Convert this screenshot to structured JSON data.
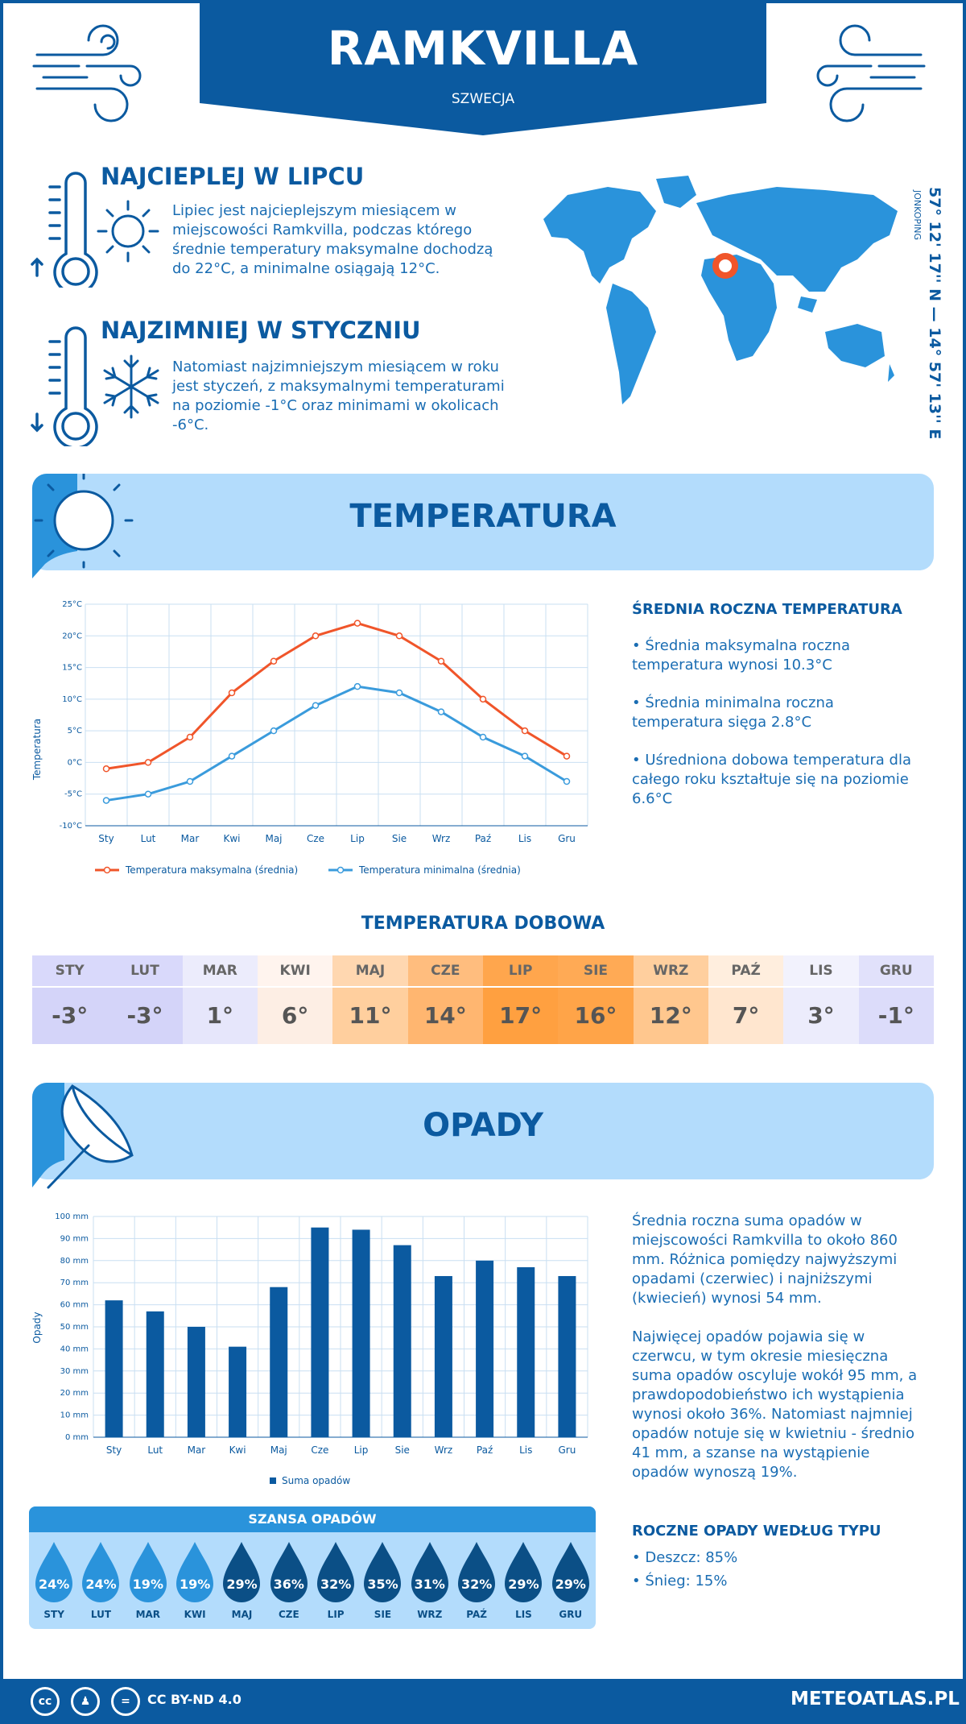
{
  "header": {
    "title": "RAMKVILLA",
    "subtitle": "SZWECJA"
  },
  "facts": {
    "warmest": {
      "title": "NAJCIEPLEJ W LIPCU",
      "text": "Lipiec jest najcieplejszym miesiącem w miejscowości Ramkvilla, podczas którego średnie temperatury maksymalne dochodzą do 22°C, a minimalne osiągają 12°C."
    },
    "coldest": {
      "title": "NAJZIMNIEJ W STYCZNIU",
      "text": "Natomiast najzimniejszym miesiącem w roku jest styczeń, z maksymalnymi temperaturami na poziomie -1°C oraz minimami w okolicach -6°C."
    }
  },
  "location": {
    "coords": "57° 12' 17'' N — 14° 57' 13'' E",
    "region": "JONKOPING"
  },
  "temperature": {
    "section_title": "TEMPERATURA",
    "side_title": "ŚREDNIA ROCZNA TEMPERATURA",
    "bullets": [
      "• Średnia maksymalna roczna temperatura wynosi 10.3°C",
      "• Średnia minimalna roczna temperatura sięga 2.8°C",
      "• Uśredniona dobowa temperatura dla całego roku kształtuje się na poziomie 6.6°C"
    ],
    "daily_title": "TEMPERATURA DOBOWA",
    "daily": [
      {
        "m": "STY",
        "v": "-3°",
        "bg": "#d9d9fb",
        "bg2": "#d4d4f9"
      },
      {
        "m": "LUT",
        "v": "-3°",
        "bg": "#d9d9fb",
        "bg2": "#d4d4f9"
      },
      {
        "m": "MAR",
        "v": "1°",
        "bg": "#ececfc",
        "bg2": "#e6e6fb"
      },
      {
        "m": "KWI",
        "v": "6°",
        "bg": "#fff4ee",
        "bg2": "#fdeee4"
      },
      {
        "m": "MAJ",
        "v": "11°",
        "bg": "#ffd7b0",
        "bg2": "#ffcf9e"
      },
      {
        "m": "CZE",
        "v": "14°",
        "bg": "#ffbd7e",
        "bg2": "#ffb670"
      },
      {
        "m": "LIP",
        "v": "17°",
        "bg": "#ffa64d",
        "bg2": "#ffa040"
      },
      {
        "m": "SIE",
        "v": "16°",
        "bg": "#ffaa55",
        "bg2": "#ffa448"
      },
      {
        "m": "WRZ",
        "v": "12°",
        "bg": "#ffcf9e",
        "bg2": "#ffc78e"
      },
      {
        "m": "PAŹ",
        "v": "7°",
        "bg": "#ffeede",
        "bg2": "#ffe6cf"
      },
      {
        "m": "LIS",
        "v": "3°",
        "bg": "#f2f2fd",
        "bg2": "#ececfc"
      },
      {
        "m": "GRU",
        "v": "-1°",
        "bg": "#e1e1fb",
        "bg2": "#dcdcfa"
      }
    ]
  },
  "precip": {
    "section_title": "OPADY",
    "text1": "Średnia roczna suma opadów w miejscowości Ramkvilla to około 860 mm. Różnica pomiędzy najwyższymi opadami (czerwiec) i najniższymi (kwiecień) wynosi 54 mm.",
    "text2": "Najwięcej opadów pojawia się w czerwcu, w tym okresie miesięczna suma opadów oscyluje wokół 95 mm, a prawdopodobieństwo ich wystąpienia wynosi około 36%. Natomiast najmniej opadów notuje się w kwietniu - średnio 41 mm, a szanse na wystąpienie opadów wynoszą 19%.",
    "types_title": "ROCZNE OPADY WEDŁUG TYPU",
    "types": [
      "• Deszcz: 85%",
      "• Śnieg: 15%"
    ],
    "chance_title": "SZANSA OPADÓW",
    "chance": [
      {
        "m": "STY",
        "p": "24%"
      },
      {
        "m": "LUT",
        "p": "24%"
      },
      {
        "m": "MAR",
        "p": "19%"
      },
      {
        "m": "KWI",
        "p": "19%"
      },
      {
        "m": "MAJ",
        "p": "29%"
      },
      {
        "m": "CZE",
        "p": "36%"
      },
      {
        "m": "LIP",
        "p": "32%"
      },
      {
        "m": "SIE",
        "p": "35%"
      },
      {
        "m": "WRZ",
        "p": "31%"
      },
      {
        "m": "PAŹ",
        "p": "32%"
      },
      {
        "m": "LIS",
        "p": "29%"
      },
      {
        "m": "GRU",
        "p": "29%"
      }
    ]
  },
  "footer": {
    "license": "CC BY-ND 4.0",
    "site": "METEOATLAS.PL"
  },
  "colors": {
    "brand": "#0b5aa0",
    "accent": "#2a93db",
    "max": "#f0552a",
    "min": "#3a9bdc"
  },
  "chart_data": [
    {
      "type": "line",
      "categories": [
        "Sty",
        "Lut",
        "Mar",
        "Kwi",
        "Maj",
        "Cze",
        "Lip",
        "Sie",
        "Wrz",
        "Paź",
        "Lis",
        "Gru"
      ],
      "series": [
        {
          "name": "Temperatura maksymalna (średnia)",
          "values": [
            -1,
            0,
            4,
            11,
            16,
            20,
            22,
            20,
            16,
            10,
            5,
            1
          ]
        },
        {
          "name": "Temperatura minimalna (średnia)",
          "values": [
            -6,
            -5,
            -3,
            1,
            5,
            9,
            12,
            11,
            8,
            4,
            1,
            -3
          ]
        }
      ],
      "ylabel": "Temperatura",
      "ylim": [
        -10,
        25
      ],
      "yticks": [
        "-10°C",
        "-5°C",
        "0°C",
        "5°C",
        "10°C",
        "15°C",
        "20°C",
        "25°C"
      ],
      "legend": "bottom"
    },
    {
      "type": "bar",
      "categories": [
        "Sty",
        "Lut",
        "Mar",
        "Kwi",
        "Maj",
        "Cze",
        "Lip",
        "Sie",
        "Wrz",
        "Paź",
        "Lis",
        "Gru"
      ],
      "series": [
        {
          "name": "Suma opadów",
          "values": [
            62,
            57,
            50,
            41,
            68,
            95,
            94,
            87,
            73,
            80,
            77,
            73
          ]
        }
      ],
      "ylabel": "Opady",
      "ylim": [
        0,
        100
      ],
      "yticks": [
        "0 mm",
        "10 mm",
        "20 mm",
        "30 mm",
        "40 mm",
        "50 mm",
        "60 mm",
        "70 mm",
        "80 mm",
        "90 mm",
        "100 mm"
      ],
      "legend": "bottom"
    }
  ]
}
